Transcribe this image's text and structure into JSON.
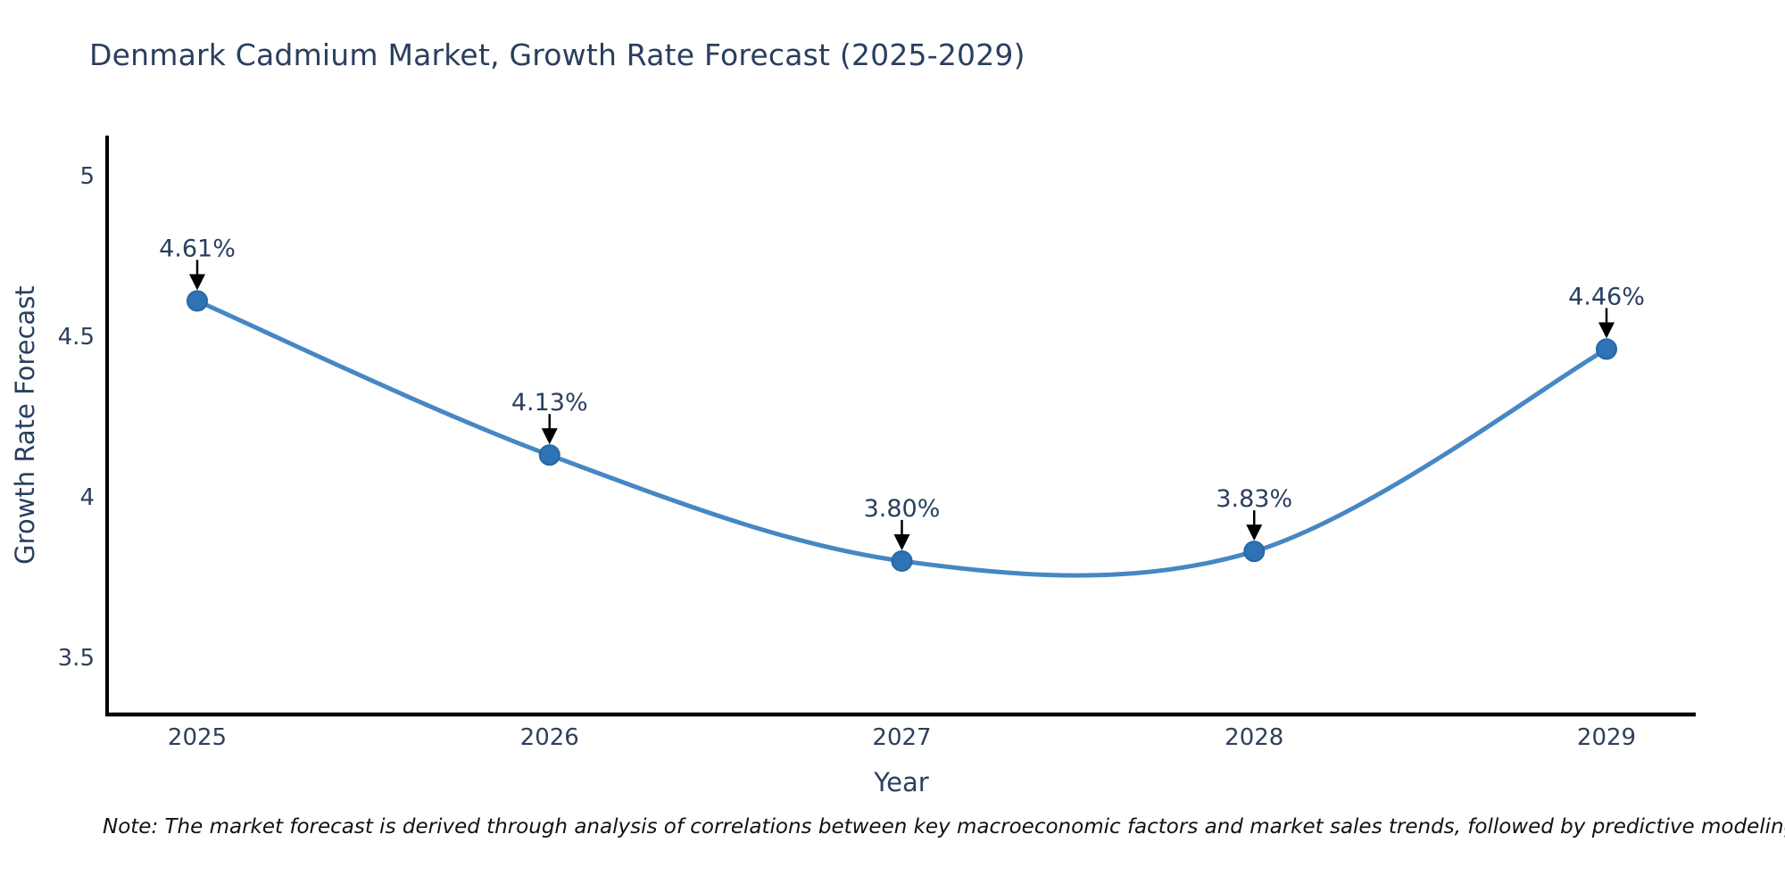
{
  "header": {
    "title": "Denmark Cadmium Market, Growth Rate Forecast (2025-2029)"
  },
  "footnote": {
    "text": "Note: The market forecast is derived through analysis of correlations between key macroeconomic factors and market sales trends, followed by predictive modeling to project future sales"
  },
  "chart_data": {
    "type": "line",
    "title": "Denmark Cadmium Market, Growth Rate Forecast (2025-2029)",
    "xlabel": "Year",
    "ylabel": "Growth Rate Forecast",
    "categories": [
      "2025",
      "2026",
      "2027",
      "2028",
      "2029"
    ],
    "series": [
      {
        "name": "Growth Rate Forecast",
        "values": [
          4.61,
          4.13,
          3.8,
          3.83,
          4.46
        ],
        "point_labels": [
          "4.61%",
          "4.13%",
          "3.80%",
          "3.83%",
          "4.46%"
        ]
      }
    ],
    "yticks": [
      {
        "value": 5,
        "label": "5"
      },
      {
        "value": 4.5,
        "label": "4.5"
      },
      {
        "value": 4,
        "label": "4"
      },
      {
        "value": 3.5,
        "label": "3.5"
      }
    ],
    "ylim": [
      3.322,
      5.125
    ],
    "grid": false,
    "legend": "none",
    "line_style": "spline",
    "annotations": "value labels with down arrows above each point",
    "colors": {
      "line": "#4687c4",
      "marker_fill": "#2e73b5",
      "marker_stroke": "#2766a3",
      "arrow": "#000000",
      "axis_line": "#000000",
      "annotation_text": "#2a3f5f",
      "tick_label": "#2f3f5c",
      "axis_title": "#2a3f5f",
      "title": "#2a3f5f",
      "note": "#111111",
      "background": "#ffffff"
    }
  }
}
